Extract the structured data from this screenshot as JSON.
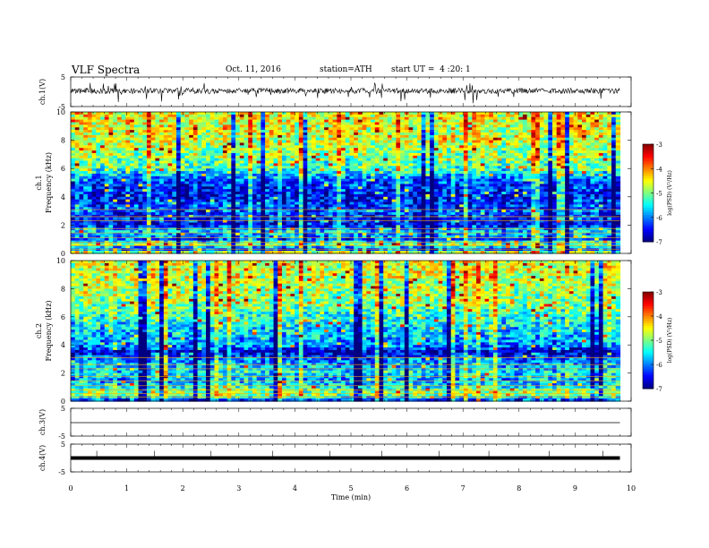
{
  "header": {
    "title": "VLF Spectra",
    "date": "Oct. 11, 2016",
    "station": "station=ATH",
    "start": "start UT =  4 :20: 1"
  },
  "chart_data": [
    {
      "type": "line",
      "panel": "ch1-waveform",
      "ylabel": "ch.1(V)",
      "ylim": [
        -5,
        5
      ],
      "yticks": [
        "5",
        "-5"
      ],
      "xlim": [
        0,
        10
      ],
      "baseline": 0,
      "amplitude_note": "noisy signal around 0 V with spikes",
      "color": "#000000"
    },
    {
      "type": "heatmap",
      "panel": "ch1-spectrogram",
      "ylabel": "Frequency (kHz)",
      "channel_label": "ch.1",
      "ylim": [
        0,
        10
      ],
      "yticks": [
        "0",
        "2",
        "4",
        "6",
        "8",
        "10"
      ],
      "xlim": [
        0,
        9.8
      ],
      "colorbar": {
        "label": "log(PSD) (V²/Hz)",
        "ticks": [
          "-3",
          "-4",
          "-5",
          "-6",
          "-7"
        ],
        "range": [
          -7,
          -3
        ]
      },
      "profile": [
        {
          "f": 0.0,
          "v": -6.9
        },
        {
          "f": 0.15,
          "v": -3.4
        },
        {
          "f": 0.3,
          "v": -6.8
        },
        {
          "f": 0.6,
          "v": -4.8
        },
        {
          "f": 1.0,
          "v": -6.2
        },
        {
          "f": 1.6,
          "v": -5.6
        },
        {
          "f": 2.0,
          "v": -6.6
        },
        {
          "f": 3.0,
          "v": -6.2
        },
        {
          "f": 4.0,
          "v": -6.5
        },
        {
          "f": 5.0,
          "v": -6.3
        },
        {
          "f": 6.0,
          "v": -5.2
        },
        {
          "f": 7.0,
          "v": -4.9
        },
        {
          "f": 8.0,
          "v": -4.7
        },
        {
          "f": 9.0,
          "v": -4.6
        },
        {
          "f": 10.0,
          "v": -4.5
        }
      ]
    },
    {
      "type": "heatmap",
      "panel": "ch2-spectrogram",
      "ylabel": "Frequency (kHz)",
      "channel_label": "ch.2",
      "ylim": [
        0,
        10
      ],
      "yticks": [
        "0",
        "2",
        "4",
        "6",
        "8",
        "10"
      ],
      "xlim": [
        0,
        9.8
      ],
      "colorbar": {
        "label": "log(PSD) (V²/Hz)",
        "ticks": [
          "-3",
          "-4",
          "-5",
          "-6",
          "-7"
        ],
        "range": [
          -7,
          -3
        ]
      },
      "profile": [
        {
          "f": 0.0,
          "v": -6.5
        },
        {
          "f": 0.5,
          "v": -4.8
        },
        {
          "f": 1.0,
          "v": -5.4
        },
        {
          "f": 1.5,
          "v": -5.8
        },
        {
          "f": 2.0,
          "v": -5.5
        },
        {
          "f": 3.0,
          "v": -6.0
        },
        {
          "f": 3.5,
          "v": -6.7
        },
        {
          "f": 4.0,
          "v": -5.9
        },
        {
          "f": 5.0,
          "v": -5.6
        },
        {
          "f": 6.0,
          "v": -5.3
        },
        {
          "f": 7.0,
          "v": -4.9
        },
        {
          "f": 8.0,
          "v": -4.8
        },
        {
          "f": 9.0,
          "v": -4.6
        },
        {
          "f": 10.0,
          "v": -4.6
        }
      ]
    },
    {
      "type": "line",
      "panel": "ch3-waveform",
      "ylabel": "ch.3(V)",
      "ylim": [
        -5,
        5
      ],
      "yticks": [
        "5",
        "-5"
      ],
      "xlim": [
        0,
        9.8
      ],
      "baseline": 0,
      "color": "#000000"
    },
    {
      "type": "line",
      "panel": "ch4-waveform",
      "ylabel": "ch.4(V)",
      "ylim": [
        -5,
        5
      ],
      "yticks": [
        "5",
        "-5"
      ],
      "xlim": [
        0,
        9.8
      ],
      "baseline": 0,
      "color": "#000000"
    }
  ],
  "xaxis": {
    "label": "Time (min)",
    "ticks": [
      "0",
      "1",
      "2",
      "3",
      "4",
      "5",
      "6",
      "7",
      "8",
      "9",
      "10"
    ]
  }
}
